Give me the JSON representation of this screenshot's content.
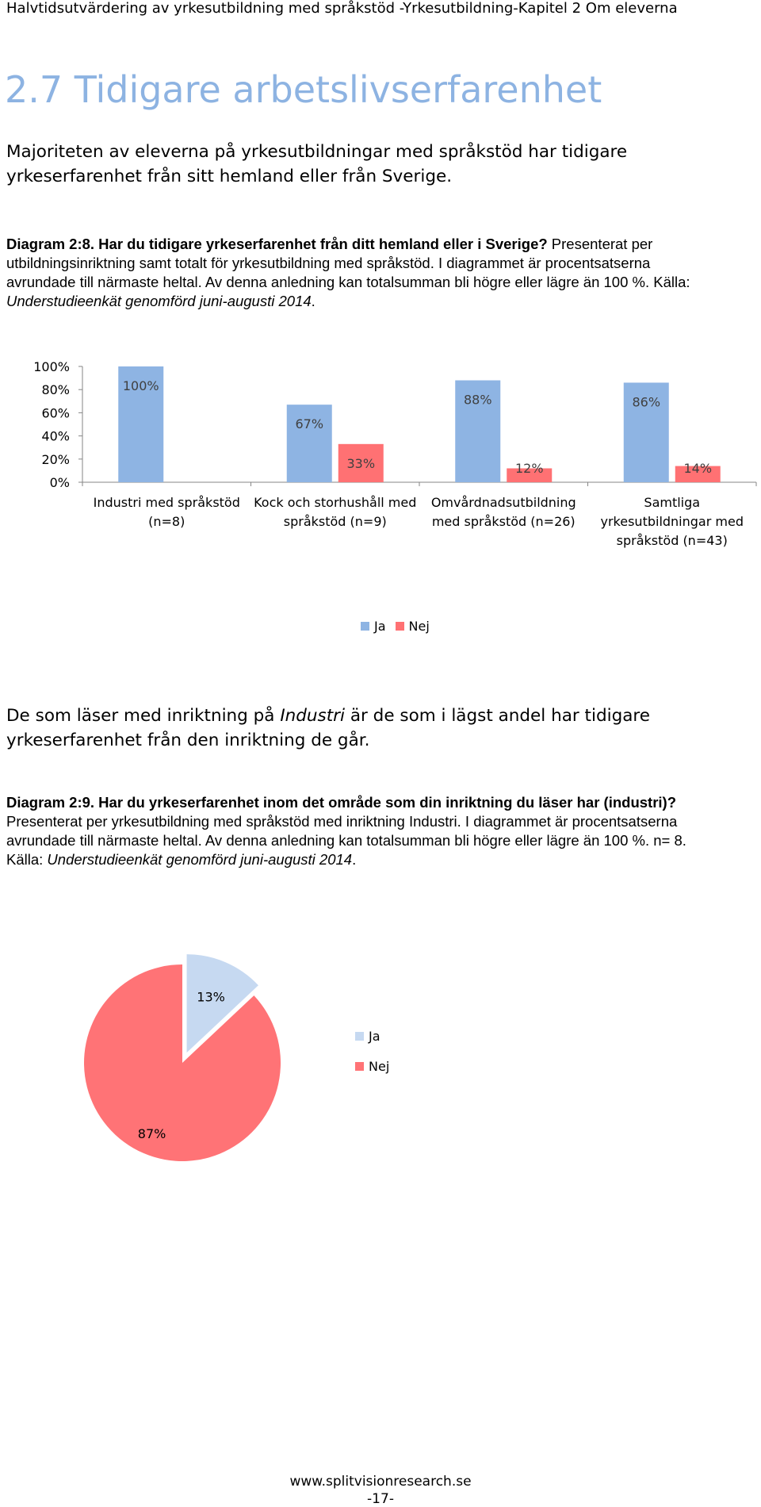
{
  "header": {
    "running_title": "Halvtidsutvärdering av yrkesutbildning med språkstöd -Yrkesutbildning-Kapitel 2 Om eleverna"
  },
  "section": {
    "title": "2.7 Tidigare arbetslivserfarenhet",
    "intro": "Majoriteten av eleverna på yrkesutbildningar med språkstöd har tidigare yrkeserfarenhet från sitt hemland eller från Sverige."
  },
  "diagram1": {
    "caption_bold": "Diagram 2:8. Har du tidigare yrkeserfarenhet från ditt hemland eller i Sverige?",
    "caption_text": " Presenterat per utbildningsinriktning samt totalt för yrkesutbildning med språkstöd. I diagrammet är procentsatserna avrundade till närmaste heltal. Av denna anledning kan totalsumman bli högre eller lägre än 100 %. Källa: ",
    "caption_italic": "Understudieenkät genomförd juni-augusti 2014",
    "caption_end": "."
  },
  "paragraph2": {
    "before": "De som läser med inriktning på ",
    "italic": "Industri",
    "after": " är de som i lägst andel har tidigare yrkeserfarenhet från den inriktning de går."
  },
  "diagram2": {
    "caption_bold": "Diagram 2:9. Har du yrkeserfarenhet inom det område som din inriktning du läser har (industri)?",
    "caption_text": " Presenterat per yrkesutbildning med språkstöd med inriktning Industri. I diagrammet är procentsatserna avrundade till närmaste heltal. Av denna anledning kan totalsumman bli högre eller lägre än 100 %. n= 8. Källa: ",
    "caption_italic": "Understudieenkät genomförd juni-augusti 2014",
    "caption_end": "."
  },
  "footer": {
    "website": "www.splitvisionresearch.se",
    "page": "-17-"
  },
  "colors": {
    "title_blue": "#8db3e2",
    "ja_blue": "#8eb4e3",
    "nej_red": "#ff7173",
    "pie_ja": "#c6d9f1",
    "pie_nej": "#ff7376"
  },
  "chart_data": [
    {
      "type": "bar",
      "categories": [
        "Industri med språkstöd (n=8)",
        "Kock och storhushåll med språkstöd (n=9)",
        "Omvårdnadsutbildning med språkstöd (n=26)",
        "Samtliga yrkesutbildningar med språkstöd (n=43)"
      ],
      "category_lines": [
        [
          "Industri med språkstöd",
          "(n=8)"
        ],
        [
          "Kock och storhushåll med",
          "språkstöd (n=9)"
        ],
        [
          "Omvårdnadsutbildning",
          "med språkstöd (n=26)"
        ],
        [
          "Samtliga",
          "yrkesutbildningar med",
          "språkstöd (n=43)"
        ]
      ],
      "series": [
        {
          "name": "Ja",
          "values": [
            100,
            67,
            88,
            86
          ],
          "labels": [
            "100%",
            "67%",
            "88%",
            "86%"
          ]
        },
        {
          "name": "Nej",
          "values": [
            0,
            33,
            12,
            14
          ],
          "labels": [
            "",
            "33%",
            "12%",
            "14%"
          ]
        }
      ],
      "yticks": [
        "0%",
        "20%",
        "40%",
        "60%",
        "80%",
        "100%"
      ],
      "ylim": [
        0,
        100
      ],
      "legend_position": "bottom",
      "grid": false
    },
    {
      "type": "pie",
      "slices": [
        {
          "name": "Ja",
          "value": 13,
          "label": "13%"
        },
        {
          "name": "Nej",
          "value": 87,
          "label": "87%"
        }
      ],
      "legend_position": "right"
    }
  ]
}
